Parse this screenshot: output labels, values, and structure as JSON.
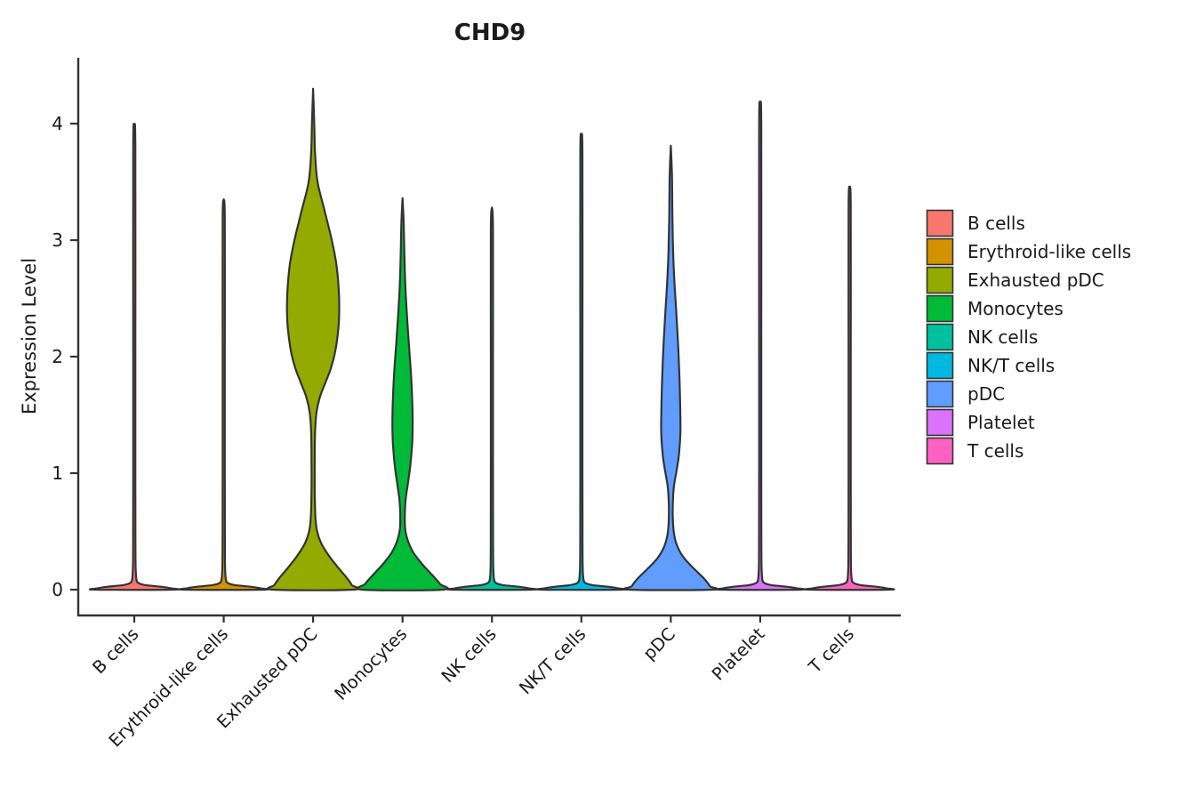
{
  "figure": {
    "title": "CHD9",
    "ylabel": "Expression Level"
  },
  "chart_data": {
    "type": "violin",
    "title": "CHD9",
    "xlabel": "",
    "ylabel": "Expression Level",
    "ylim": [
      0,
      4.56
    ],
    "y_ticks": [
      0,
      1,
      2,
      3,
      4
    ],
    "grid": false,
    "legend_position": "right",
    "categories": [
      "B cells",
      "Erythroid-like cells",
      "Exhausted pDC",
      "Monocytes",
      "NK cells",
      "NK/T cells",
      "pDC",
      "Platelet",
      "T cells"
    ],
    "style": {
      "outline_color": "#333333",
      "axis_color": "#333333",
      "text_color": "#1a1a1a",
      "background": "#ffffff"
    },
    "series": [
      {
        "name": "B cells",
        "color": "#F8766D",
        "max_expression": 3.97,
        "profile": [
          [
            3.97,
            0
          ],
          [
            3.8,
            1.2
          ],
          [
            2.0,
            1.2
          ],
          [
            1.0,
            1.2
          ],
          [
            0.4,
            1.3
          ],
          [
            0.2,
            1.5
          ],
          [
            0.1,
            2.2
          ],
          [
            0.06,
            4
          ],
          [
            0.04,
            12
          ],
          [
            0.025,
            30
          ],
          [
            0.012,
            41
          ],
          [
            0,
            44
          ]
        ]
      },
      {
        "name": "Erythroid-like cells",
        "color": "#D39200",
        "max_expression": 3.35,
        "profile": [
          [
            3.35,
            0
          ],
          [
            3.18,
            1.2
          ],
          [
            2.0,
            1.2
          ],
          [
            1.0,
            1.2
          ],
          [
            0.4,
            1.3
          ],
          [
            0.2,
            1.5
          ],
          [
            0.1,
            2.2
          ],
          [
            0.06,
            4
          ],
          [
            0.04,
            12
          ],
          [
            0.025,
            30
          ],
          [
            0.012,
            41
          ],
          [
            0,
            44
          ]
        ]
      },
      {
        "name": "Exhausted pDC",
        "color": "#93AA00",
        "max_expression": 4.3,
        "profile": [
          [
            4.3,
            0
          ],
          [
            4.0,
            1.3
          ],
          [
            3.75,
            2.2
          ],
          [
            3.5,
            5
          ],
          [
            3.25,
            13
          ],
          [
            3.0,
            21
          ],
          [
            2.8,
            26
          ],
          [
            2.6,
            28.6
          ],
          [
            2.42,
            29.4
          ],
          [
            2.25,
            28.5
          ],
          [
            2.05,
            25
          ],
          [
            1.9,
            20
          ],
          [
            1.78,
            14
          ],
          [
            1.65,
            7.5
          ],
          [
            1.52,
            3.8
          ],
          [
            1.35,
            2.2
          ],
          [
            1.1,
            1.8
          ],
          [
            0.85,
            1.8
          ],
          [
            0.62,
            2.6
          ],
          [
            0.5,
            4.5
          ],
          [
            0.4,
            9
          ],
          [
            0.3,
            17
          ],
          [
            0.2,
            27
          ],
          [
            0.1,
            38
          ],
          [
            0.04,
            43.5
          ],
          [
            0,
            45
          ]
        ]
      },
      {
        "name": "Monocytes",
        "color": "#00BA38",
        "max_expression": 3.36,
        "profile": [
          [
            3.36,
            0
          ],
          [
            3.15,
            1.3
          ],
          [
            2.9,
            2
          ],
          [
            2.6,
            3.2
          ],
          [
            2.35,
            5
          ],
          [
            2.1,
            7.2
          ],
          [
            1.85,
            9.5
          ],
          [
            1.6,
            11
          ],
          [
            1.42,
            11.4
          ],
          [
            1.25,
            10.8
          ],
          [
            1.05,
            8.5
          ],
          [
            0.9,
            5.8
          ],
          [
            0.78,
            3.6
          ],
          [
            0.65,
            2.6
          ],
          [
            0.52,
            3
          ],
          [
            0.42,
            6
          ],
          [
            0.32,
            12
          ],
          [
            0.22,
            22
          ],
          [
            0.12,
            34
          ],
          [
            0.05,
            42
          ],
          [
            0,
            45
          ]
        ]
      },
      {
        "name": "NK cells",
        "color": "#00C19F",
        "max_expression": 3.28,
        "profile": [
          [
            3.28,
            0
          ],
          [
            3.1,
            1.2
          ],
          [
            2.0,
            1.2
          ],
          [
            1.0,
            1.2
          ],
          [
            0.4,
            1.3
          ],
          [
            0.2,
            1.5
          ],
          [
            0.1,
            2.2
          ],
          [
            0.06,
            4
          ],
          [
            0.04,
            12
          ],
          [
            0.025,
            30
          ],
          [
            0.012,
            41
          ],
          [
            0,
            44
          ]
        ]
      },
      {
        "name": "NK/T cells",
        "color": "#00B9E3",
        "max_expression": 3.89,
        "profile": [
          [
            3.89,
            0
          ],
          [
            3.72,
            1.2
          ],
          [
            2.0,
            1.2
          ],
          [
            1.0,
            1.2
          ],
          [
            0.4,
            1.3
          ],
          [
            0.2,
            1.5
          ],
          [
            0.1,
            2.2
          ],
          [
            0.06,
            4
          ],
          [
            0.04,
            12
          ],
          [
            0.025,
            30
          ],
          [
            0.012,
            41
          ],
          [
            0,
            44
          ]
        ]
      },
      {
        "name": "pDC",
        "color": "#619CFF",
        "max_expression": 3.81,
        "profile": [
          [
            3.81,
            0
          ],
          [
            3.55,
            1.3
          ],
          [
            3.2,
            1.8
          ],
          [
            2.9,
            2.6
          ],
          [
            2.65,
            4
          ],
          [
            2.4,
            6
          ],
          [
            2.1,
            8.2
          ],
          [
            1.8,
            9.8
          ],
          [
            1.55,
            10.6
          ],
          [
            1.35,
            10.8
          ],
          [
            1.15,
            9
          ],
          [
            1.0,
            6
          ],
          [
            0.88,
            3.4
          ],
          [
            0.72,
            2.2
          ],
          [
            0.58,
            2.4
          ],
          [
            0.46,
            4
          ],
          [
            0.36,
            8
          ],
          [
            0.27,
            15
          ],
          [
            0.18,
            26
          ],
          [
            0.09,
            38
          ],
          [
            0.03,
            44
          ],
          [
            0,
            46
          ]
        ]
      },
      {
        "name": "Platelet",
        "color": "#DB72FB",
        "max_expression": 4.15,
        "profile": [
          [
            4.15,
            0
          ],
          [
            3.98,
            1.2
          ],
          [
            2.0,
            1.2
          ],
          [
            1.0,
            1.2
          ],
          [
            0.4,
            1.3
          ],
          [
            0.2,
            1.5
          ],
          [
            0.1,
            2.2
          ],
          [
            0.06,
            4
          ],
          [
            0.04,
            12
          ],
          [
            0.025,
            30
          ],
          [
            0.012,
            41
          ],
          [
            0,
            44
          ]
        ]
      },
      {
        "name": "T cells",
        "color": "#FF61C3",
        "max_expression": 3.46,
        "profile": [
          [
            3.46,
            0
          ],
          [
            3.29,
            1.2
          ],
          [
            2.0,
            1.2
          ],
          [
            1.0,
            1.2
          ],
          [
            0.4,
            1.3
          ],
          [
            0.2,
            1.5
          ],
          [
            0.1,
            2.2
          ],
          [
            0.06,
            4
          ],
          [
            0.04,
            12
          ],
          [
            0.025,
            30
          ],
          [
            0.012,
            41
          ],
          [
            0,
            44
          ]
        ]
      }
    ],
    "legend": {
      "items": [
        "B cells",
        "Erythroid-like cells",
        "Exhausted pDC",
        "Monocytes",
        "NK cells",
        "NK/T cells",
        "pDC",
        "Platelet",
        "T cells"
      ]
    }
  }
}
